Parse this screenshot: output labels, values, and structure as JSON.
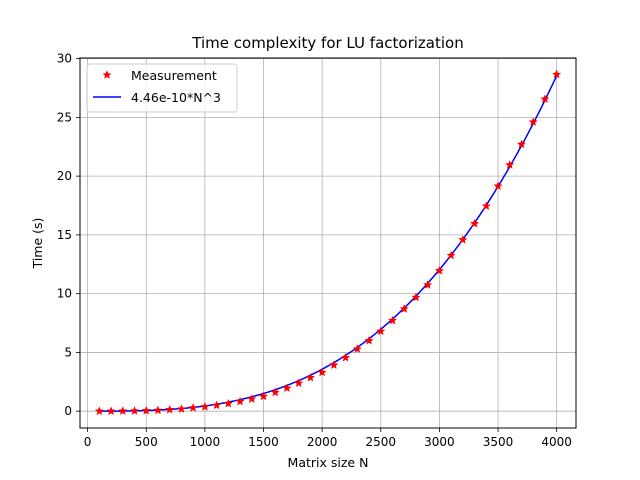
{
  "chart_data": {
    "type": "line",
    "title": "Time complexity for LU factorization",
    "xlabel": "Matrix size N",
    "ylabel": "Time (s)",
    "xlim": [
      -65,
      4165
    ],
    "ylim": [
      -1.43,
      30.05
    ],
    "xticks": [
      0,
      500,
      1000,
      1500,
      2000,
      2500,
      3000,
      3500,
      4000
    ],
    "yticks": [
      0,
      5,
      10,
      15,
      20,
      25,
      30
    ],
    "grid": true,
    "legend_position": "upper-left",
    "series": [
      {
        "name": "Measurement",
        "style": "star-markers",
        "color": "#ff0000",
        "x": [
          100,
          200,
          300,
          400,
          500,
          600,
          700,
          800,
          900,
          1000,
          1100,
          1200,
          1300,
          1400,
          1500,
          1600,
          1700,
          1800,
          1900,
          2000,
          2100,
          2200,
          2300,
          2400,
          2500,
          2600,
          2700,
          2800,
          2900,
          3000,
          3100,
          3200,
          3300,
          3400,
          3500,
          3600,
          3700,
          3800,
          3900,
          4000
        ],
        "y": [
          0.0,
          0.0,
          0.01,
          0.02,
          0.04,
          0.07,
          0.13,
          0.18,
          0.28,
          0.37,
          0.5,
          0.64,
          0.82,
          1.03,
          1.26,
          1.6,
          1.96,
          2.38,
          2.85,
          3.3,
          3.92,
          4.55,
          5.29,
          6.0,
          6.8,
          7.71,
          8.7,
          9.68,
          10.74,
          11.95,
          13.25,
          14.58,
          15.95,
          17.45,
          19.15,
          20.95,
          22.7,
          24.6,
          26.55,
          28.65
        ]
      },
      {
        "name": "4.46e-10*N^3",
        "style": "solid-line",
        "color": "#0000ff",
        "fit_coefficient": 4.46e-10,
        "fit_exponent": 3,
        "x_range": [
          100,
          4000
        ]
      }
    ]
  }
}
